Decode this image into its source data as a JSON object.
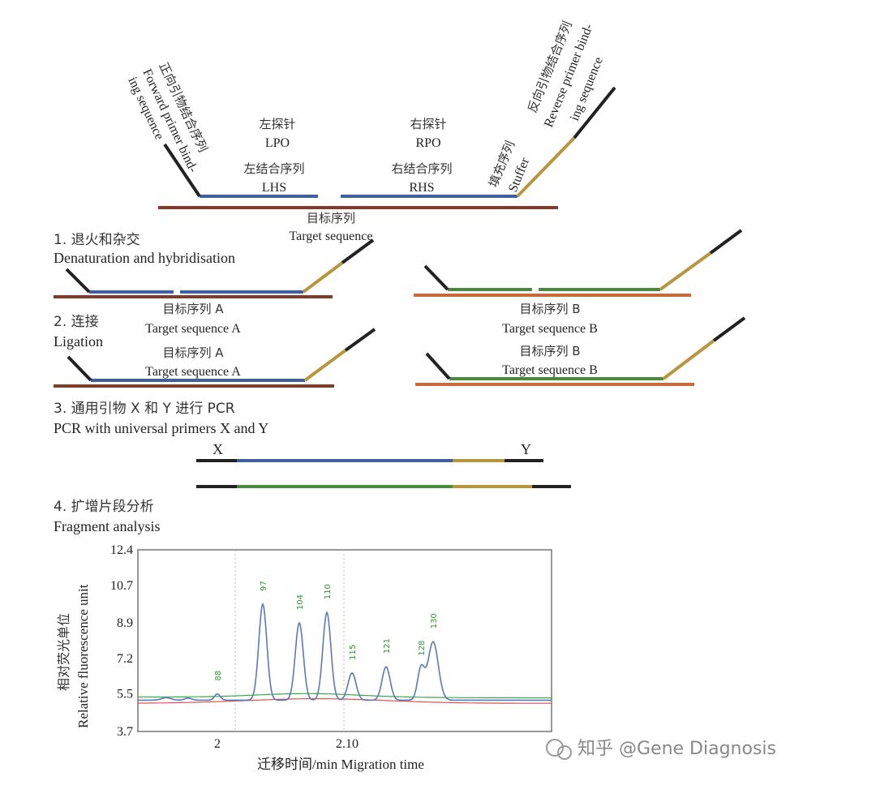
{
  "colors": {
    "target": "#7a3e2b",
    "target_b": "#c86a3a",
    "probe_a": "#3f5f9e",
    "probe_b": "#4a8a3c",
    "stuffer": "#b8963e",
    "primer": "#222222",
    "trace_blue": "#5b78b8",
    "trace_green": "#3aa845",
    "trace_red": "#d9534f"
  },
  "top": {
    "forward_cn": "正向引物结合序列",
    "forward_en1": "Forward  primer  bind-",
    "forward_en2": "ing sequence",
    "lpo_cn": "左探针",
    "lpo_en": "LPO",
    "lhs_cn": "左结合序列",
    "lhs_en": "LHS",
    "rpo_cn": "右探针",
    "rpo_en": "RPO",
    "rhs_cn": "右结合序列",
    "rhs_en": "RHS",
    "stuffer_cn": "填充序列",
    "stuffer_en": "Stuffer",
    "reverse_cn": "反向引物结合序列",
    "reverse_en1": "Reverse primer bind-",
    "reverse_en2": "ing sequence",
    "target_cn": "目标序列",
    "target_en": "Target sequence"
  },
  "steps": {
    "s1_cn": "1. 退火和杂交",
    "s1_en": "Denaturation and hybridisation",
    "s2_cn": "2. 连接",
    "s2_en": "Ligation",
    "s3_cn": "3. 通用引物 X 和 Y 进行 PCR",
    "s3_en": "PCR with universal primers X and Y",
    "s4_cn": "4. 扩增片段分析",
    "s4_en": "Fragment analysis"
  },
  "labels": {
    "target_a_cn": "目标序列 A",
    "target_a_en": "Target sequence A",
    "target_b_cn": "目标序列 B",
    "target_b_en": "Target sequence B",
    "x": "X",
    "y": "Y"
  },
  "chart_data": {
    "type": "line",
    "ylabel_cn": "相对荧光单位",
    "ylabel_en": "Relative fluorescence unit",
    "xlabel": "迁移时间/min  Migration time",
    "ylim": [
      3.7,
      12.4
    ],
    "yticks": [
      "12.4",
      "10.7",
      "8.9",
      "7.2",
      "5.5",
      "3.7"
    ],
    "xticks": [
      "2",
      "2.10"
    ],
    "peaks": [
      {
        "label": "88",
        "height": 5.5
      },
      {
        "label": "97",
        "height": 9.8
      },
      {
        "label": "104",
        "height": 8.9
      },
      {
        "label": "110",
        "height": 9.4
      },
      {
        "label": "115",
        "height": 6.5
      },
      {
        "label": "121",
        "height": 6.8
      },
      {
        "label": "128",
        "height": 6.7
      },
      {
        "label": "130",
        "height": 8.0
      }
    ]
  },
  "watermark": "知乎 @Gene Diagnosis"
}
